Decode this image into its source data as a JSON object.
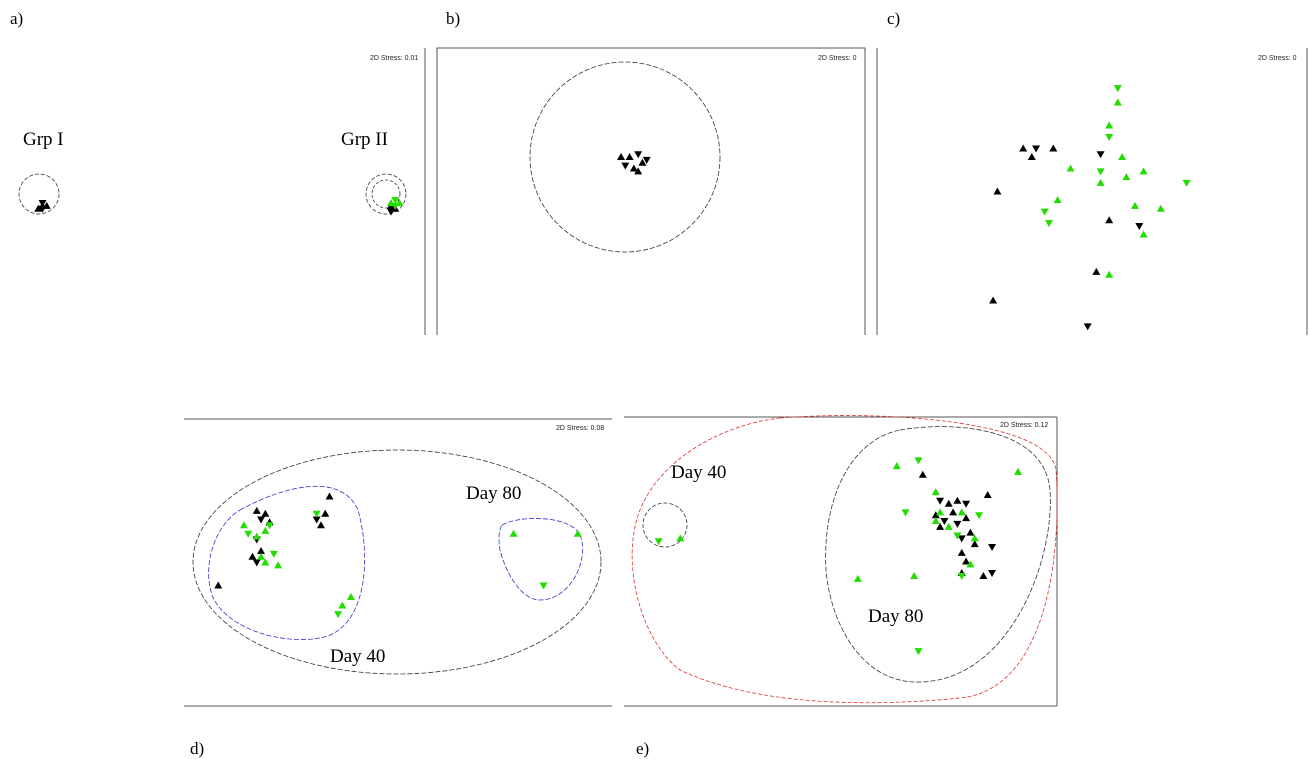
{
  "panels": {
    "a": {
      "label": "a)",
      "stress": "2D Stress: 0.01",
      "annotations": [
        "Grp I",
        "Grp II"
      ]
    },
    "b": {
      "label": "b)",
      "stress": "2D Stress: 0"
    },
    "c": {
      "label": "c)",
      "stress": "2D Stress: 0"
    },
    "d": {
      "label": "d)",
      "stress": "2D Stress: 0.08",
      "annotations": [
        "Day 80",
        "Day 40"
      ]
    },
    "e": {
      "label": "e)",
      "stress": "2D Stress: 0.12",
      "annotations": [
        "Day 40",
        "Day 80"
      ]
    }
  },
  "colors": {
    "black_marker": "#000000",
    "green_marker": "#22dd00",
    "blue_outline": "#3333cc",
    "red_outline": "#e03030",
    "black_outline": "#333333"
  },
  "chart_data": [
    {
      "type": "scatter",
      "title": "a)",
      "stress": "2D Stress: 0.01",
      "series": [
        {
          "color": "black",
          "points": [
            [
              0.1,
              0.55
            ],
            [
              0.1,
              0.56
            ],
            [
              0.11,
              0.55
            ],
            [
              0.09,
              0.56
            ],
            [
              0.1,
              0.54
            ],
            [
              0.92,
              0.55
            ],
            [
              0.93,
              0.56
            ],
            [
              0.92,
              0.57
            ]
          ]
        },
        {
          "color": "green",
          "points": [
            [
              0.93,
              0.53
            ],
            [
              0.92,
              0.54
            ],
            [
              0.94,
              0.54
            ],
            [
              0.93,
              0.55
            ]
          ]
        }
      ],
      "groups": [
        "Grp I",
        "Grp II"
      ]
    },
    {
      "type": "scatter",
      "title": "b)",
      "stress": "2D Stress: 0",
      "series": [
        {
          "color": "black",
          "points": [
            [
              0.45,
              0.38
            ],
            [
              0.47,
              0.37
            ],
            [
              0.48,
              0.4
            ],
            [
              0.46,
              0.42
            ],
            [
              0.44,
              0.41
            ],
            [
              0.47,
              0.43
            ],
            [
              0.43,
              0.38
            ],
            [
              0.49,
              0.39
            ]
          ]
        }
      ]
    },
    {
      "type": "scatter",
      "title": "c)",
      "stress": "2D Stress: 0",
      "series": [
        {
          "color": "black",
          "points": [
            [
              0.34,
              0.35
            ],
            [
              0.37,
              0.35
            ],
            [
              0.41,
              0.35
            ],
            [
              0.36,
              0.38
            ],
            [
              0.52,
              0.37
            ],
            [
              0.28,
              0.5
            ],
            [
              0.54,
              0.6
            ],
            [
              0.61,
              0.62
            ],
            [
              0.51,
              0.78
            ],
            [
              0.27,
              0.88
            ],
            [
              0.49,
              0.97
            ]
          ]
        },
        {
          "color": "green",
          "points": [
            [
              0.56,
              0.14
            ],
            [
              0.56,
              0.19
            ],
            [
              0.54,
              0.27
            ],
            [
              0.54,
              0.31
            ],
            [
              0.57,
              0.38
            ],
            [
              0.45,
              0.42
            ],
            [
              0.52,
              0.43
            ],
            [
              0.58,
              0.45
            ],
            [
              0.62,
              0.43
            ],
            [
              0.72,
              0.47
            ],
            [
              0.52,
              0.47
            ],
            [
              0.42,
              0.53
            ],
            [
              0.39,
              0.57
            ],
            [
              0.6,
              0.55
            ],
            [
              0.66,
              0.56
            ],
            [
              0.4,
              0.61
            ],
            [
              0.62,
              0.65
            ],
            [
              0.54,
              0.79
            ]
          ]
        }
      ]
    },
    {
      "type": "scatter",
      "title": "d)",
      "stress": "2D Stress: 0.08",
      "series": [
        {
          "color": "black",
          "points": [
            [
              0.17,
              0.32
            ],
            [
              0.18,
              0.35
            ],
            [
              0.2,
              0.36
            ],
            [
              0.19,
              0.33
            ],
            [
              0.17,
              0.42
            ],
            [
              0.18,
              0.46
            ],
            [
              0.16,
              0.48
            ],
            [
              0.17,
              0.5
            ],
            [
              0.08,
              0.58
            ],
            [
              0.34,
              0.27
            ],
            [
              0.31,
              0.35
            ],
            [
              0.32,
              0.37
            ],
            [
              0.33,
              0.33
            ]
          ]
        },
        {
          "color": "green",
          "points": [
            [
              0.15,
              0.4
            ],
            [
              0.17,
              0.41
            ],
            [
              0.19,
              0.39
            ],
            [
              0.2,
              0.37
            ],
            [
              0.14,
              0.37
            ],
            [
              0.18,
              0.48
            ],
            [
              0.21,
              0.47
            ],
            [
              0.22,
              0.51
            ],
            [
              0.19,
              0.5
            ],
            [
              0.31,
              0.33
            ],
            [
              0.37,
              0.65
            ],
            [
              0.39,
              0.62
            ],
            [
              0.36,
              0.68
            ],
            [
              0.77,
              0.4
            ],
            [
              0.92,
              0.4
            ],
            [
              0.84,
              0.58
            ]
          ]
        }
      ],
      "groups": [
        "Day 80",
        "Day 40"
      ]
    },
    {
      "type": "scatter",
      "title": "e)",
      "stress": "2D Stress: 0.12",
      "series": [
        {
          "color": "black",
          "points": [
            [
              0.69,
              0.2
            ],
            [
              0.73,
              0.29
            ],
            [
              0.75,
              0.3
            ],
            [
              0.77,
              0.29
            ],
            [
              0.79,
              0.3
            ],
            [
              0.84,
              0.27
            ],
            [
              0.76,
              0.33
            ],
            [
              0.74,
              0.36
            ],
            [
              0.72,
              0.34
            ],
            [
              0.73,
              0.38
            ],
            [
              0.77,
              0.37
            ],
            [
              0.79,
              0.35
            ],
            [
              0.8,
              0.4
            ],
            [
              0.78,
              0.42
            ],
            [
              0.81,
              0.44
            ],
            [
              0.78,
              0.47
            ],
            [
              0.85,
              0.45
            ],
            [
              0.79,
              0.5
            ],
            [
              0.78,
              0.54
            ],
            [
              0.85,
              0.54
            ],
            [
              0.83,
              0.55
            ]
          ]
        },
        {
          "color": "green",
          "points": [
            [
              0.08,
              0.43
            ],
            [
              0.13,
              0.42
            ],
            [
              0.63,
              0.17
            ],
            [
              0.68,
              0.15
            ],
            [
              0.91,
              0.19
            ],
            [
              0.72,
              0.26
            ],
            [
              0.65,
              0.33
            ],
            [
              0.73,
              0.33
            ],
            [
              0.78,
              0.33
            ],
            [
              0.82,
              0.34
            ],
            [
              0.72,
              0.36
            ],
            [
              0.75,
              0.38
            ],
            [
              0.77,
              0.41
            ],
            [
              0.81,
              0.42
            ],
            [
              0.8,
              0.51
            ],
            [
              0.78,
              0.55
            ],
            [
              0.54,
              0.56
            ],
            [
              0.67,
              0.55
            ],
            [
              0.68,
              0.81
            ]
          ]
        }
      ],
      "groups": [
        "Day 40",
        "Day 80"
      ]
    }
  ]
}
